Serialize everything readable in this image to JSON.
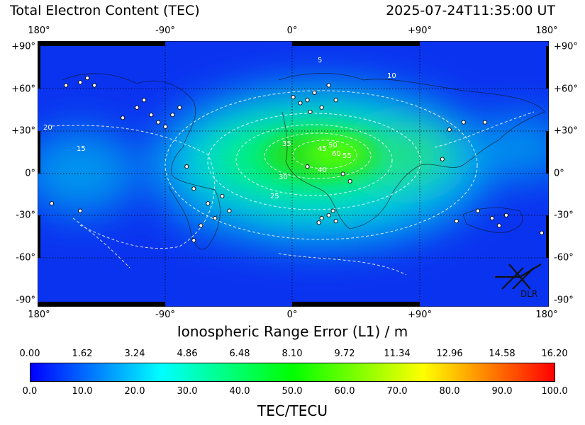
{
  "header": {
    "title": "Total Electron Content (TEC)",
    "timestamp": "2025-07-24T11:35:00 UT"
  },
  "map": {
    "lon_ticks": [
      "180°",
      "-90°",
      "0°",
      "+90°",
      "180°"
    ],
    "lat_ticks": [
      "+90°",
      "+60°",
      "+30°",
      "0°",
      "-30°",
      "-60°",
      "-90°"
    ],
    "contour_labels": [
      "5",
      "10",
      "15",
      "20",
      "25",
      "30",
      "35",
      "40",
      "45",
      "50",
      "55",
      "60"
    ],
    "logo_text": "DLR",
    "colors": {
      "low": "#0000ff",
      "mid_low": "#00ffff",
      "mid": "#00ff00",
      "high": "#ffff00",
      "max": "#ff0000",
      "contour": "#ffffff",
      "station": "#ffffff"
    }
  },
  "range_axis": {
    "label": "Ionospheric Range Error (L1) / m",
    "ticks": [
      "0.00",
      "1.62",
      "3.24",
      "4.86",
      "6.48",
      "8.10",
      "9.72",
      "11.34",
      "12.96",
      "14.58",
      "16.20"
    ]
  },
  "colorbar": {
    "label": "TEC/TECU",
    "ticks": [
      "0.0",
      "10.0",
      "20.0",
      "30.0",
      "40.0",
      "50.0",
      "60.0",
      "70.0",
      "80.0",
      "90.0",
      "100.0"
    ],
    "stops": [
      "#0000ff",
      "#00ffff",
      "#00ff00",
      "#ffff00",
      "#ff0000"
    ]
  },
  "chart_data": {
    "type": "heatmap",
    "title": "Total Electron Content (TEC)",
    "timestamp": "2025-07-24T11:35:00 UT",
    "x_axis": {
      "label": "",
      "range": [
        -180,
        180
      ],
      "ticks": [
        -180,
        -90,
        0,
        90,
        180
      ]
    },
    "y_axis": {
      "label": "",
      "range": [
        -90,
        90
      ],
      "ticks": [
        90,
        60,
        30,
        0,
        -30,
        -60,
        -90
      ]
    },
    "color_scale": {
      "label": "TEC/TECU",
      "range": [
        0,
        100
      ]
    },
    "secondary_scale": {
      "label": "Ionospheric Range Error (L1) / m",
      "range": [
        0,
        16.2
      ]
    },
    "tec_max_centers": [
      {
        "lon": 25,
        "lat": 10,
        "tec": 55
      },
      {
        "lon": 5,
        "lat": 12,
        "tec": 45
      },
      {
        "lon": 60,
        "lat": 12,
        "tec": 40
      },
      {
        "lon": 100,
        "lat": 15,
        "tec": 30
      },
      {
        "lon": -60,
        "lat": -5,
        "tec": 25
      },
      {
        "lon": 150,
        "lat": 25,
        "tec": 15
      }
    ],
    "contour_levels": [
      5,
      10,
      15,
      20,
      25,
      30,
      35,
      40,
      45,
      50,
      55,
      60
    ],
    "stations": [
      {
        "lon": -100,
        "lat": 40
      },
      {
        "lon": -95,
        "lat": 35
      },
      {
        "lon": -85,
        "lat": 40
      },
      {
        "lon": -110,
        "lat": 45
      },
      {
        "lon": -120,
        "lat": 38
      },
      {
        "lon": -105,
        "lat": 50
      },
      {
        "lon": -80,
        "lat": 45
      },
      {
        "lon": -90,
        "lat": 32
      },
      {
        "lon": -150,
        "lat": 62
      },
      {
        "lon": -145,
        "lat": 65
      },
      {
        "lon": -160,
        "lat": 60
      },
      {
        "lon": -140,
        "lat": 60
      },
      {
        "lon": -75,
        "lat": 5
      },
      {
        "lon": -70,
        "lat": -10
      },
      {
        "lon": -60,
        "lat": -20
      },
      {
        "lon": -50,
        "lat": -15
      },
      {
        "lon": -65,
        "lat": -35
      },
      {
        "lon": -70,
        "lat": -45
      },
      {
        "lon": -55,
        "lat": -30
      },
      {
        "lon": -45,
        "lat": -25
      },
      {
        "lon": 10,
        "lat": 50
      },
      {
        "lon": 15,
        "lat": 55
      },
      {
        "lon": 20,
        "lat": 45
      },
      {
        "lon": 5,
        "lat": 48
      },
      {
        "lon": 25,
        "lat": 60
      },
      {
        "lon": 0,
        "lat": 52
      },
      {
        "lon": 30,
        "lat": 50
      },
      {
        "lon": 12,
        "lat": 42
      },
      {
        "lon": 20,
        "lat": -30
      },
      {
        "lon": 25,
        "lat": -28
      },
      {
        "lon": 28,
        "lat": -25
      },
      {
        "lon": 18,
        "lat": -33
      },
      {
        "lon": 30,
        "lat": -32
      },
      {
        "lon": 10,
        "lat": 5
      },
      {
        "lon": 35,
        "lat": 0
      },
      {
        "lon": 40,
        "lat": -5
      },
      {
        "lon": 110,
        "lat": 30
      },
      {
        "lon": 120,
        "lat": 35
      },
      {
        "lon": 135,
        "lat": 35
      },
      {
        "lon": 105,
        "lat": 10
      },
      {
        "lon": 140,
        "lat": -30
      },
      {
        "lon": 145,
        "lat": -35
      },
      {
        "lon": 150,
        "lat": -28
      },
      {
        "lon": 130,
        "lat": -25
      },
      {
        "lon": 175,
        "lat": -40
      },
      {
        "lon": 115,
        "lat": -32
      },
      {
        "lon": -150,
        "lat": -25
      },
      {
        "lon": -170,
        "lat": -20
      }
    ]
  }
}
